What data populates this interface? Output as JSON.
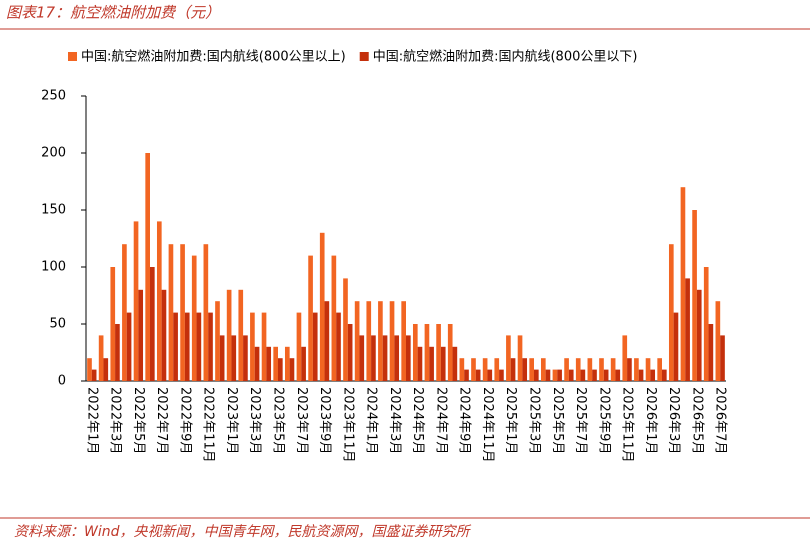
{
  "chart_data": {
    "type": "bar",
    "title": "图表17：航空燃油附加费（元）",
    "source": "资料来源：Wind，央视新闻，中国青年网，民航资源网，国盛证券研究所",
    "categories": [
      "2022年1月",
      null,
      "2022年3月",
      null,
      "2022年5月",
      null,
      "2022年7月",
      null,
      "2022年9月",
      null,
      "2022年11月",
      null,
      "2023年1月",
      null,
      "2023年3月",
      null,
      "2023年5月",
      null,
      "2023年7月",
      null,
      "2023年9月",
      null,
      "2023年11月",
      null,
      "2024年1月",
      null,
      "2024年3月",
      null,
      "2024年5月",
      null,
      "2024年7月",
      null,
      "2024年9月",
      null,
      "2024年11月",
      null,
      "2025年1月",
      null,
      "2025年3月",
      null,
      "2025年5月",
      null,
      "2025年7月",
      null,
      "2025年9月",
      null,
      "2025年11月",
      null,
      "2026年1月",
      null,
      "2026年3月",
      null,
      "2026年5月",
      null,
      "2026年7月"
    ],
    "series": [
      {
        "name": "中国:航空燃油附加费:国内航线(800公里以上)",
        "color": "#f26522",
        "values": [
          20,
          40,
          100,
          120,
          140,
          200,
          140,
          120,
          120,
          110,
          120,
          70,
          80,
          80,
          60,
          60,
          30,
          30,
          60,
          110,
          130,
          110,
          90,
          70,
          70,
          70,
          70,
          70,
          50,
          50,
          50,
          50,
          20,
          20,
          20,
          20,
          40,
          40,
          20,
          20,
          10,
          20,
          20,
          20,
          20,
          20,
          40,
          20,
          20,
          20,
          120,
          170,
          150,
          100,
          70
        ]
      },
      {
        "name": "中国:航空燃油附加费:国内航线(800公里以下)",
        "color": "#c4300c",
        "values": [
          10,
          20,
          50,
          60,
          80,
          100,
          80,
          60,
          60,
          60,
          60,
          40,
          40,
          40,
          30,
          30,
          20,
          20,
          30,
          60,
          70,
          60,
          50,
          40,
          40,
          40,
          40,
          40,
          30,
          30,
          30,
          30,
          10,
          10,
          10,
          10,
          20,
          20,
          10,
          10,
          10,
          10,
          10,
          10,
          10,
          10,
          20,
          10,
          10,
          10,
          60,
          90,
          80,
          50,
          40
        ]
      }
    ],
    "ylim": [
      0,
      250
    ],
    "yticks": [
      0,
      50,
      100,
      150,
      200,
      250
    ]
  }
}
